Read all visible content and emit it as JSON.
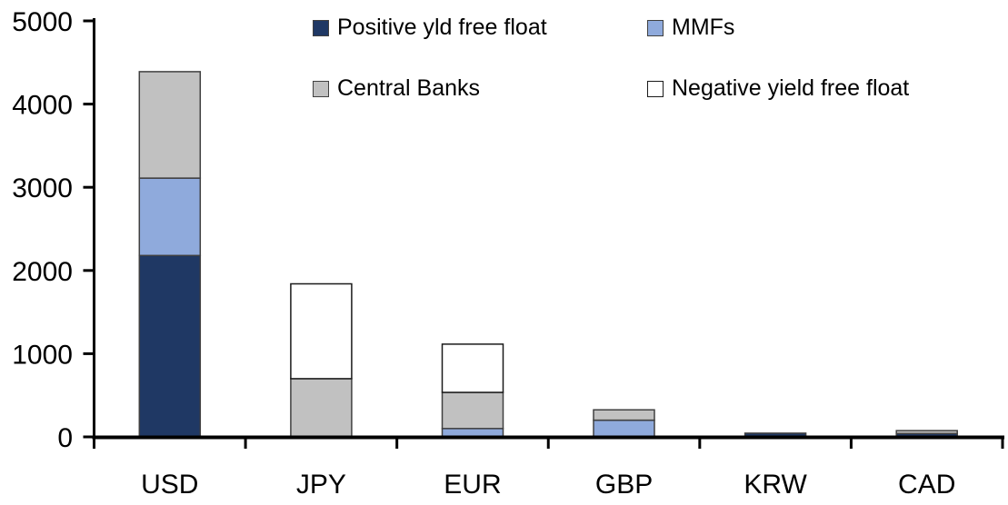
{
  "chart_data": {
    "type": "bar",
    "stacked": true,
    "title": "",
    "xlabel": "",
    "ylabel": "",
    "categories": [
      "USD",
      "JPY",
      "EUR",
      "GBP",
      "KRW",
      "CAD"
    ],
    "series": [
      {
        "name": "Positive yld free float",
        "color": "#1F3864",
        "values": [
          2180,
          0,
          0,
          0,
          45,
          40
        ]
      },
      {
        "name": "MMFs",
        "color": "#8FAADC",
        "values": [
          930,
          0,
          100,
          200,
          0,
          0
        ]
      },
      {
        "name": "Central Banks",
        "color": "#C1C1C1",
        "values": [
          1280,
          700,
          435,
          125,
          0,
          35
        ]
      },
      {
        "name": "Negative yield free float",
        "color": "#FFFFFF",
        "values": [
          0,
          1140,
          580,
          0,
          0,
          0
        ]
      }
    ],
    "totals": [
      4390,
      1840,
      1115,
      325,
      45,
      75
    ],
    "ylim": [
      0,
      5000
    ],
    "yticks": [
      "0",
      "1000",
      "2000",
      "3000",
      "4000",
      "5000"
    ],
    "grid": false,
    "legend_position": "top",
    "axis_color": "#000000",
    "segment_border_color": "#404040",
    "white_segment_border_color": "#1a1a1a"
  }
}
